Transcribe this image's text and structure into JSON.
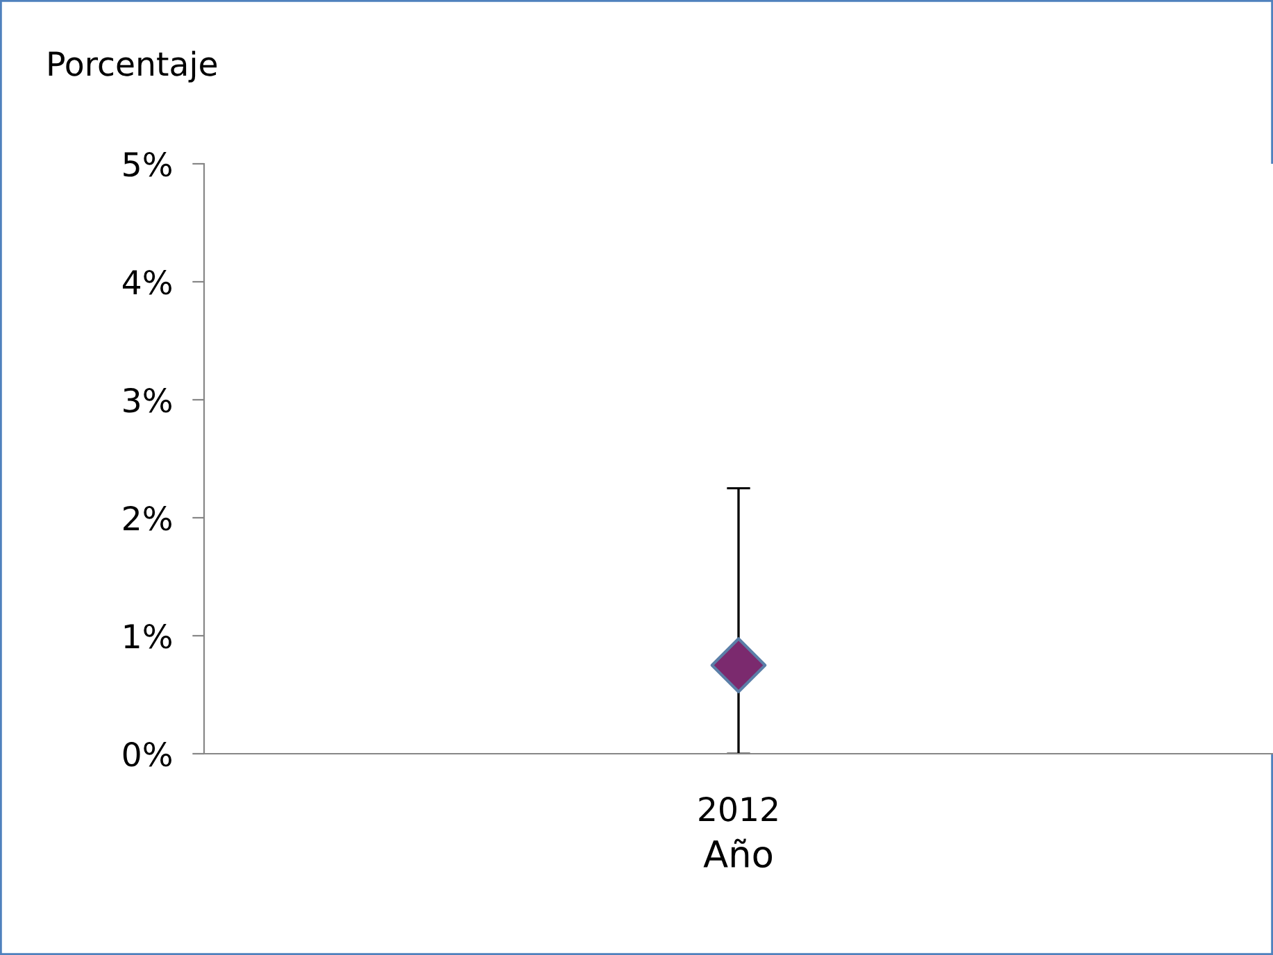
{
  "chart_data": {
    "type": "scatter",
    "xlabel": "Año",
    "ylabel": "Porcentaje",
    "categories": [
      "2012"
    ],
    "series": [
      {
        "color": "#7b2a6e",
        "values": [
          0.75
        ],
        "errors": [
          [
            0,
            2.25
          ]
        ]
      }
    ],
    "ylim": [
      0,
      5
    ],
    "yticks": [
      {
        "value": 0,
        "label": "0%"
      },
      {
        "value": 1,
        "label": "1%"
      },
      {
        "value": 2,
        "label": "2%"
      },
      {
        "value": 3,
        "label": "3%"
      },
      {
        "value": 4,
        "label": "4%"
      },
      {
        "value": 5,
        "label": "5%"
      }
    ],
    "marker": "diamond",
    "grid": false,
    "legend": false
  }
}
